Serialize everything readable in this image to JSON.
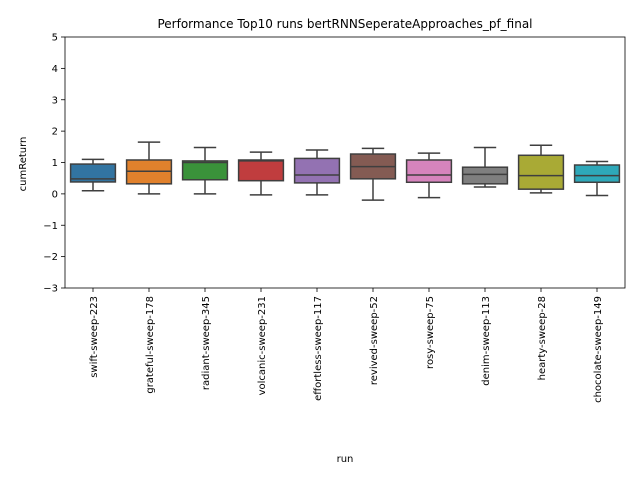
{
  "chart_data": {
    "type": "box",
    "title": "Performance Top10 runs bertRNNSeperateApproaches_pf_final",
    "xlabel": "run",
    "ylabel": "cumReturn",
    "ylim": [
      -3,
      5
    ],
    "yticks": [
      -3,
      -2,
      -1,
      0,
      1,
      2,
      3,
      4,
      5
    ],
    "grid": false,
    "categories": [
      "swift-sweep-223",
      "grateful-sweep-178",
      "radiant-sweep-345",
      "volcanic-sweep-231",
      "effortless-sweep-117",
      "revived-sweep-52",
      "rosy-sweep-75",
      "denim-sweep-113",
      "hearty-sweep-28",
      "chocolate-sweep-149"
    ],
    "boxes": [
      {
        "run": "swift-sweep-223",
        "whisker_low": 0.1,
        "q1": 0.38,
        "median": 0.48,
        "q3": 0.95,
        "whisker_high": 1.1,
        "color": "#3274a1"
      },
      {
        "run": "grateful-sweep-178",
        "whisker_low": 0.0,
        "q1": 0.32,
        "median": 0.72,
        "q3": 1.08,
        "whisker_high": 1.65,
        "color": "#e1812c"
      },
      {
        "run": "radiant-sweep-345",
        "whisker_low": 0.0,
        "q1": 0.45,
        "median": 1.0,
        "q3": 1.05,
        "whisker_high": 1.48,
        "color": "#3a923a"
      },
      {
        "run": "volcanic-sweep-231",
        "whisker_low": -0.03,
        "q1": 0.42,
        "median": 1.05,
        "q3": 1.08,
        "whisker_high": 1.33,
        "color": "#c03d3e"
      },
      {
        "run": "effortless-sweep-117",
        "whisker_low": -0.03,
        "q1": 0.35,
        "median": 0.6,
        "q3": 1.13,
        "whisker_high": 1.4,
        "color": "#9372b2"
      },
      {
        "run": "revived-sweep-52",
        "whisker_low": -0.2,
        "q1": 0.48,
        "median": 0.87,
        "q3": 1.27,
        "whisker_high": 1.45,
        "color": "#845b53"
      },
      {
        "run": "rosy-sweep-75",
        "whisker_low": -0.12,
        "q1": 0.37,
        "median": 0.6,
        "q3": 1.08,
        "whisker_high": 1.3,
        "color": "#d684bd"
      },
      {
        "run": "denim-sweep-113",
        "whisker_low": 0.22,
        "q1": 0.32,
        "median": 0.62,
        "q3": 0.85,
        "whisker_high": 1.48,
        "color": "#7f7f7f"
      },
      {
        "run": "hearty-sweep-28",
        "whisker_low": 0.03,
        "q1": 0.15,
        "median": 0.58,
        "q3": 1.23,
        "whisker_high": 1.55,
        "color": "#a9aa35"
      },
      {
        "run": "chocolate-sweep-149",
        "whisker_low": -0.05,
        "q1": 0.37,
        "median": 0.58,
        "q3": 0.92,
        "whisker_high": 1.03,
        "color": "#2ea8b9"
      }
    ],
    "line_color": "#3f3f3f"
  }
}
